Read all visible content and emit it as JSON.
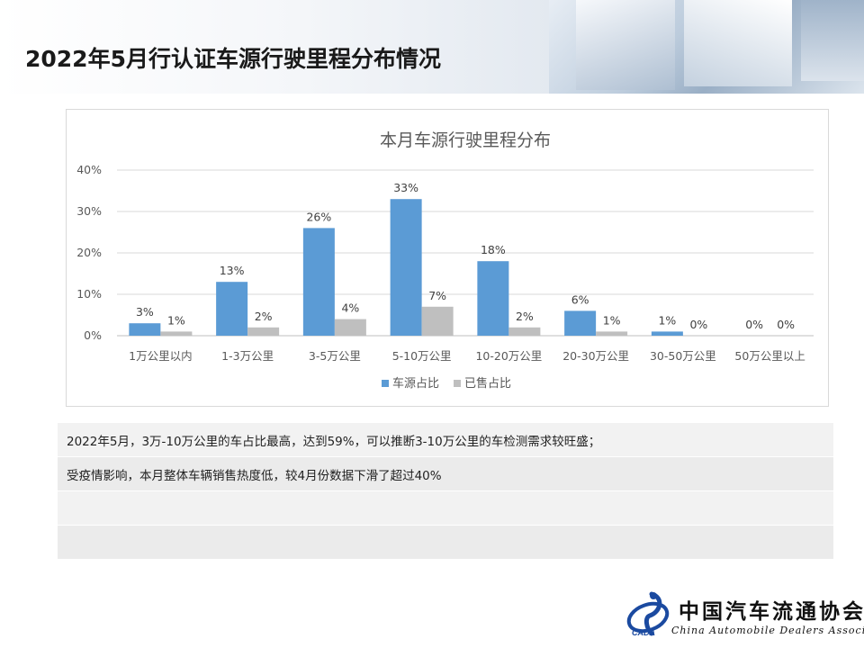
{
  "page": {
    "title": "2022年5月行认证车源行驶里程分布情况"
  },
  "chart_data": {
    "type": "bar",
    "title": "本月车源行驶里程分布",
    "categories": [
      "1万公里以内",
      "1-3万公里",
      "3-5万公里",
      "5-10万公里",
      "10-20万公里",
      "20-30万公里",
      "30-50万公里",
      "50万公里以上"
    ],
    "series": [
      {
        "name": "车源占比",
        "values": [
          3,
          13,
          26,
          33,
          18,
          6,
          1,
          0
        ],
        "labels": [
          "3%",
          "13%",
          "26%",
          "33%",
          "18%",
          "6%",
          "1%",
          "0%"
        ],
        "color": "#5b9bd5"
      },
      {
        "name": "已售占比",
        "values": [
          1,
          2,
          4,
          7,
          2,
          1,
          0,
          0
        ],
        "labels": [
          "1%",
          "2%",
          "4%",
          "7%",
          "2%",
          "1%",
          "0%",
          "0%"
        ],
        "color": "#bfbfbf"
      }
    ],
    "ylim": [
      0,
      40
    ],
    "yticks": [
      0,
      10,
      20,
      30,
      40
    ],
    "ytick_labels": [
      "0%",
      "10%",
      "20%",
      "30%",
      "40%"
    ],
    "grid": true,
    "legend_position": "bottom"
  },
  "notes": [
    "2022年5月，3万-10万公里的车占比最高，达到59%，可以推断3-10万公里的车检测需求较旺盛；",
    "受疫情影响，本月整体车辆销售热度低，较4月份数据下滑了超过40%",
    "",
    ""
  ],
  "logo": {
    "name_cn": "中国汽车流通协会",
    "name_en": "China Automobile Dealers Association",
    "abbr": "CADA"
  }
}
